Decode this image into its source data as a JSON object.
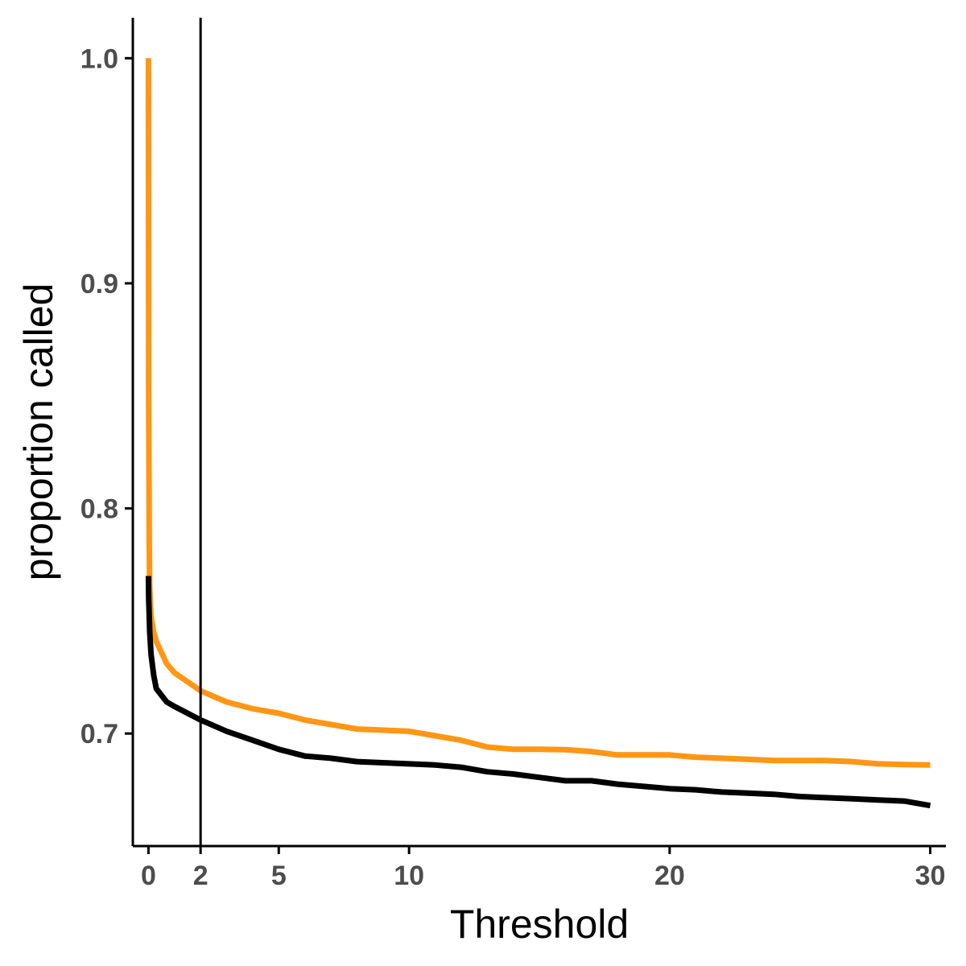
{
  "chart_data": {
    "type": "line",
    "xlabel": "Threshold",
    "ylabel": "proportion called",
    "xlim": [
      -0.6,
      30.6
    ],
    "ylim": [
      0.65,
      1.018
    ],
    "x_ticks": [
      0,
      2,
      5,
      10,
      20,
      30
    ],
    "x_tick_labels": [
      "0",
      "2",
      "5",
      "10",
      "20",
      "30"
    ],
    "y_ticks": [
      0.7,
      0.8,
      0.9,
      1.0
    ],
    "y_tick_labels": [
      "0.7",
      "0.8",
      "0.9",
      "1.0"
    ],
    "reference_line": {
      "x": 2,
      "color": "#000000"
    },
    "grid": false,
    "legend": "none",
    "series": [
      {
        "color": "#ff9614",
        "x": [
          0,
          0.01,
          0.03,
          0.05,
          0.1,
          0.2,
          0.3,
          0.5,
          0.7,
          1.0,
          1.5,
          2.0,
          3.0,
          4.0,
          5.0,
          6.0,
          7.0,
          8.0,
          9.0,
          10.0,
          11.0,
          12.0,
          13.0,
          14.0,
          15.0,
          16.0,
          17.0,
          18.0,
          19.0,
          20.0,
          21.0,
          22.0,
          23.0,
          24.0,
          25.0,
          26.0,
          27.0,
          28.0,
          29.0,
          30.0
        ],
        "values": [
          1.0,
          0.85,
          0.785,
          0.765,
          0.752,
          0.745,
          0.741,
          0.736,
          0.731,
          0.727,
          0.723,
          0.719,
          0.714,
          0.711,
          0.709,
          0.706,
          0.704,
          0.702,
          0.7015,
          0.701,
          0.699,
          0.697,
          0.694,
          0.693,
          0.693,
          0.6928,
          0.692,
          0.6905,
          0.6905,
          0.6905,
          0.6895,
          0.689,
          0.6885,
          0.688,
          0.688,
          0.688,
          0.6875,
          0.6865,
          0.6862,
          0.686
        ]
      },
      {
        "color": "#000000",
        "x": [
          0,
          0.01,
          0.03,
          0.05,
          0.1,
          0.2,
          0.3,
          0.5,
          0.7,
          1.0,
          1.5,
          2.0,
          3.0,
          4.0,
          5.0,
          6.0,
          7.0,
          8.0,
          9.0,
          10.0,
          11.0,
          12.0,
          13.0,
          14.0,
          15.0,
          16.0,
          17.0,
          18.0,
          19.0,
          20.0,
          21.0,
          22.0,
          23.0,
          24.0,
          25.0,
          26.0,
          27.0,
          28.0,
          29.0,
          30.0
        ],
        "values": [
          0.77,
          0.76,
          0.752,
          0.745,
          0.735,
          0.726,
          0.72,
          0.717,
          0.714,
          0.712,
          0.709,
          0.706,
          0.701,
          0.697,
          0.693,
          0.69,
          0.689,
          0.6875,
          0.687,
          0.6865,
          0.686,
          0.685,
          0.683,
          0.682,
          0.6805,
          0.679,
          0.679,
          0.6775,
          0.6765,
          0.6755,
          0.675,
          0.674,
          0.6735,
          0.673,
          0.672,
          0.6715,
          0.671,
          0.6705,
          0.67,
          0.668
        ]
      }
    ]
  }
}
